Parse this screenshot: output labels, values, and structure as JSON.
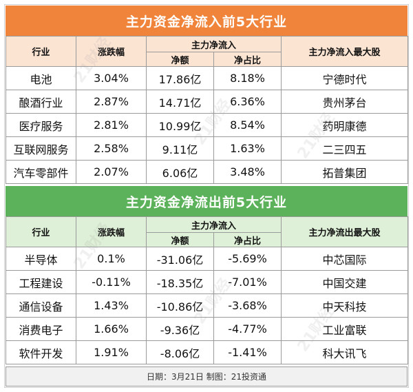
{
  "inflow": {
    "title": "主力资金净流入前5大行业",
    "headers": {
      "industry": "行业",
      "change": "涨跌幅",
      "net_flow_group": "主力净流入",
      "amount": "净额",
      "ratio": "净占比",
      "top_stock": "主力净流入最大股"
    },
    "rows": [
      {
        "industry": "电池",
        "change": "3.04%",
        "amount": "17.86亿",
        "ratio": "8.18%",
        "top_stock": "宁德时代"
      },
      {
        "industry": "酿酒行业",
        "change": "2.87%",
        "amount": "14.71亿",
        "ratio": "6.36%",
        "top_stock": "贵州茅台"
      },
      {
        "industry": "医疗服务",
        "change": "2.81%",
        "amount": "10.99亿",
        "ratio": "8.54%",
        "top_stock": "药明康德"
      },
      {
        "industry": "互联网服务",
        "change": "2.58%",
        "amount": "9.11亿",
        "ratio": "1.63%",
        "top_stock": "二三四五"
      },
      {
        "industry": "汽车零部件",
        "change": "2.07%",
        "amount": "6.06亿",
        "ratio": "3.48%",
        "top_stock": "拓普集团"
      }
    ]
  },
  "outflow": {
    "title": "主力资金净流出前5大行业",
    "headers": {
      "industry": "行业",
      "change": "涨跌幅",
      "net_flow_group": "主力净流入",
      "amount": "净额",
      "ratio": "净占比",
      "top_stock": "主力净流出最大股"
    },
    "rows": [
      {
        "industry": "半导体",
        "change": "0.1%",
        "amount": "-31.06亿",
        "ratio": "-5.69%",
        "top_stock": "中芯国际"
      },
      {
        "industry": "工程建设",
        "change": "-0.11%",
        "amount": "-18.35亿",
        "ratio": "-7.01%",
        "top_stock": "中国交建"
      },
      {
        "industry": "通信设备",
        "change": "1.43%",
        "amount": "-10.86亿",
        "ratio": "-3.68%",
        "top_stock": "中天科技"
      },
      {
        "industry": "消费电子",
        "change": "1.66%",
        "amount": "-9.36亿",
        "ratio": "-4.77%",
        "top_stock": "工业富联"
      },
      {
        "industry": "软件开发",
        "change": "1.91%",
        "amount": "-8.06亿",
        "ratio": "-1.41%",
        "top_stock": "科大讯飞"
      }
    ]
  },
  "footer": "日期：3月21日 制图：21投资通",
  "watermark_text": "21财经",
  "colors": {
    "inflow_title": "#f0843a",
    "inflow_header": "#fce4d3",
    "outflow_title": "#5cb25a",
    "outflow_header": "#def0d7"
  }
}
